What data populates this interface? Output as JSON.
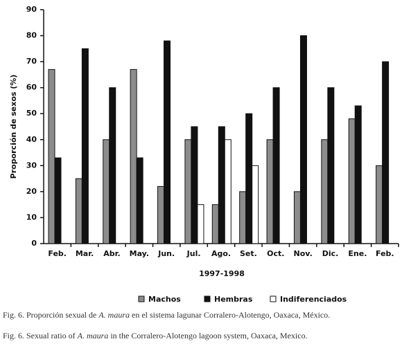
{
  "chart_data": {
    "type": "bar",
    "y_label": "Proporción de sexos (%)",
    "x_label": "1997-1998",
    "categories": [
      "Feb.",
      "Mar.",
      "Abr.",
      "May.",
      "Jun.",
      "Jul.",
      "Ago.",
      "Set.",
      "Oct.",
      "Nov.",
      "Dic.",
      "Ene.",
      "Feb."
    ],
    "series": [
      {
        "name": "Machos",
        "color": "#8c8c8c",
        "values": [
          67,
          25,
          40,
          67,
          22,
          40,
          15,
          20,
          40,
          20,
          40,
          48,
          30
        ]
      },
      {
        "name": "Hembras",
        "color": "#111111",
        "values": [
          33,
          75,
          60,
          33,
          78,
          45,
          45,
          50,
          60,
          80,
          60,
          53,
          70
        ]
      },
      {
        "name": "Indiferenciados",
        "color": "#ffffff",
        "values": [
          null,
          null,
          null,
          null,
          null,
          15,
          40,
          30,
          null,
          null,
          null,
          null,
          null
        ]
      }
    ],
    "ylim": [
      0,
      90
    ],
    "yticks": [
      0,
      10,
      20,
      30,
      40,
      50,
      60,
      70,
      80,
      90
    ],
    "grid": false
  },
  "captions": [
    {
      "before": "Fig. 6. Proporción sexual de ",
      "italic": "A. maura",
      "after": " en el sistema lagunar Corralero-Alotengo, Oaxaca, México."
    },
    {
      "before": "Fig. 6. Sexual ratio of ",
      "italic": "A. maura",
      "after": " in the Corralero-Alotengo lagoon system, Oaxaca, Mexico."
    }
  ]
}
